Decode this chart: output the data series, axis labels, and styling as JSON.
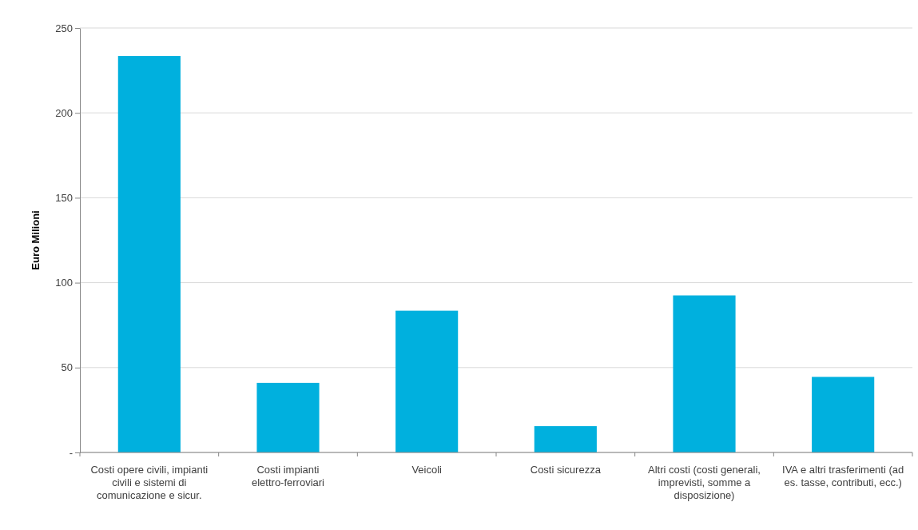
{
  "chart_data": {
    "type": "bar",
    "ylabel": "Euro Milioni",
    "categories": [
      "Costi opere civili, impianti civili e sistemi di comunicazione e sicur.",
      "Costi impianti elettro-ferroviari",
      "Veicoli",
      "Costi sicurezza",
      "Altri costi (costi generali, imprevisti, somme a disposizione)",
      "IVA e altri trasferimenti (ad es. tasse, contributi, ecc.)"
    ],
    "values": [
      233.5,
      41,
      83.5,
      15.5,
      92.5,
      44.5
    ],
    "color": "#00b0de",
    "ylim": [
      0,
      250
    ],
    "yticks": [
      {
        "value": 0,
        "label": "-"
      },
      50,
      100,
      150,
      200,
      250
    ],
    "grid": "y"
  }
}
